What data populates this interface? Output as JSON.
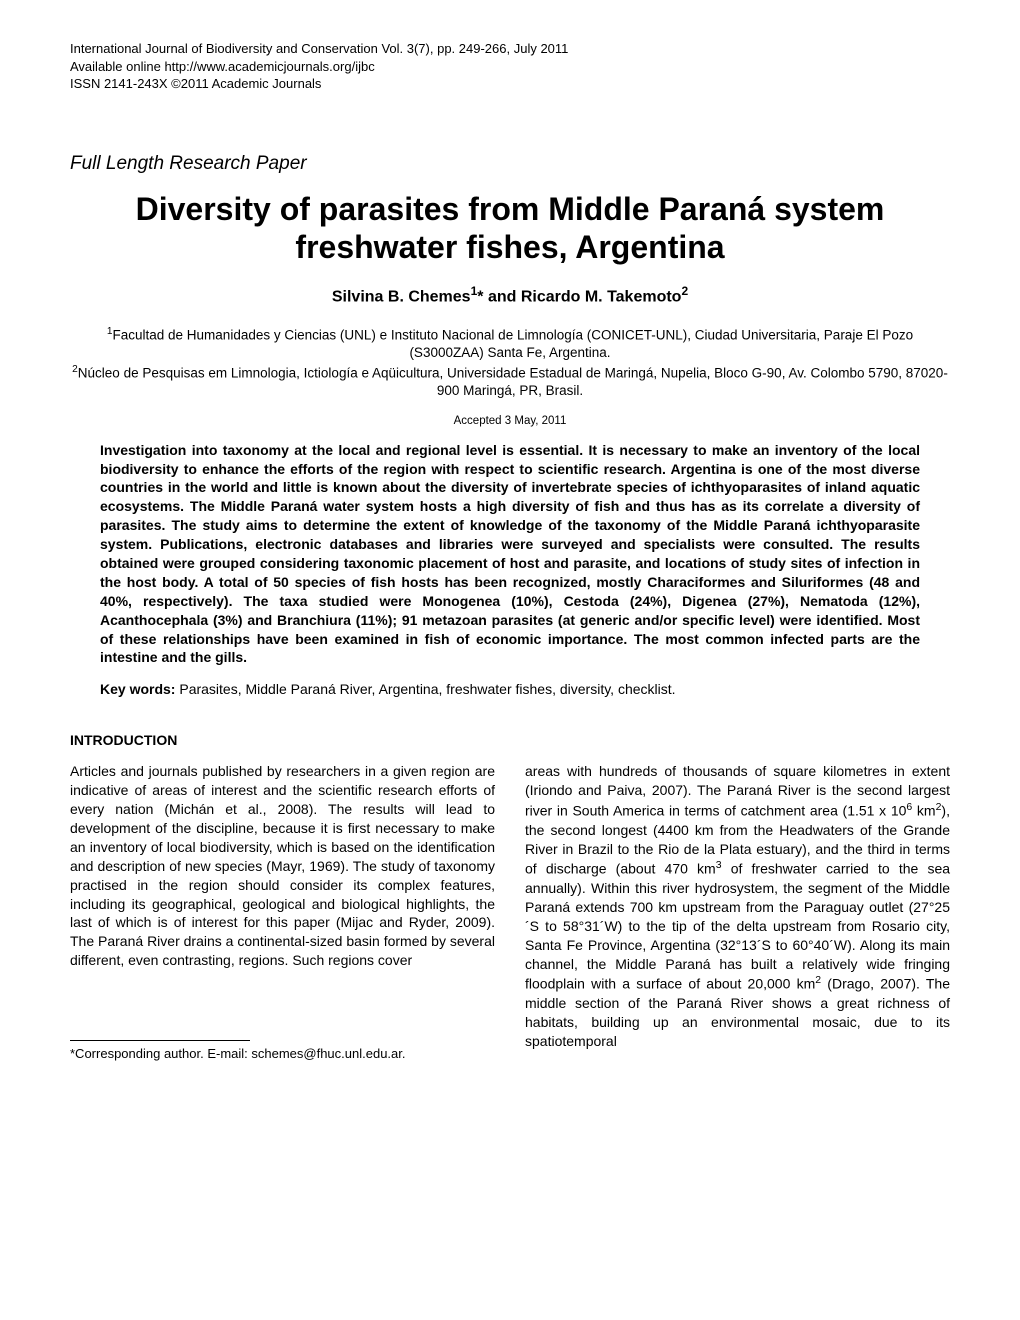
{
  "header": {
    "line1": "International Journal of Biodiversity and Conservation Vol. 3(7), pp. 249-266, July 2011",
    "line2": "Available online http://www.academicjournals.org/ijbc",
    "line3": "ISSN 2141-243X ©2011 Academic Journals"
  },
  "paper_type": "Full Length Research Paper",
  "title": "Diversity of parasites from Middle Paraná system freshwater fishes, Argentina",
  "authors_html": "Silvina B. Chemes<sup>1</sup>* and Ricardo M. Takemoto<sup>2</sup>",
  "affiliations": {
    "a1": "<sup>1</sup>Facultad de Humanidades y Ciencias (UNL) e Instituto Nacional de Limnología (CONICET-UNL), Ciudad Universitaria, Paraje El Pozo (S3000ZAA) Santa Fe, Argentina.",
    "a2": "<sup>2</sup>Núcleo de Pesquisas em Limnologia, Ictiología e Aqüicultura, Universidade Estadual de Maringá, Nupelia, Bloco G-90, Av. Colombo 5790, 87020-900 Maringá, PR, Brasil."
  },
  "accepted": "Accepted 3 May, 2011",
  "abstract": "Investigation into taxonomy at the local and regional level is essential. It is necessary to make an inventory of the local biodiversity to enhance the efforts of the region with respect to scientific research. Argentina is one of the most diverse countries in the world and little is known about the diversity of invertebrate species of ichthyoparasites of inland aquatic ecosystems. The Middle Paraná water system hosts a high diversity of fish and thus has as its correlate a diversity of parasites. The study aims to determine the extent of knowledge of the taxonomy of the Middle Paraná ichthyoparasite system. Publications, electronic databases and libraries were surveyed and specialists were consulted. The results obtained were grouped considering taxonomic placement of host and parasite, and locations of study sites of infection in the host body. A total of 50 species of fish hosts has been recognized, mostly Characiformes and Siluriformes (48 and 40%, respectively). The taxa studied were Monogenea (10%), Cestoda (24%), Digenea (27%), Nematoda (12%), Acanthocephala (3%) and Branchiura (11%); 91 metazoan parasites (at generic and/or specific level) were identified. Most of these relationships have been examined in fish of economic importance. The most common infected parts are the intestine and the gills.",
  "keywords_label": "Key words:",
  "keywords": " Parasites, Middle Paraná River, Argentina, freshwater fishes, diversity, checklist.",
  "section_introduction": "INTRODUCTION",
  "col_left": "Articles and journals published by researchers in a given region are indicative of areas of interest and the scientific research efforts of every nation (Michán et al., 2008). The results will lead to development of the discipline, because it is first necessary to make an inventory of local biodiversity, which is based on the identification and description of new species (Mayr, 1969). The study of taxonomy practised in the region should consider its complex features, including its geographical, geological and biological highlights, the last of which is of interest for this paper (Mijac and Ryder, 2009). The Paraná River drains a continental-sized basin formed by several different, even contrasting, regions.  Such  regions  cover",
  "col_right": "areas with hundreds of thousands of square kilometres in extent (Iriondo and Paiva, 2007). The Paraná River is the second largest river in South America in terms of catchment area (1.51 x 10<sup>6</sup> km<sup>2</sup>), the second longest (4400 km from the Headwaters of the Grande River in Brazil to the Rio de la Plata estuary), and the third in terms of discharge (about 470 km<sup>3</sup> of freshwater carried to the sea annually). Within this river hydrosystem, the segment of the Middle Paraná extends 700 km upstream from the Paraguay outlet (27°25´S to 58°31´W) to the tip of the delta upstream from Rosario city, Santa Fe Province, Argentina (32°13´S to 60°40´W). Along its main channel, the Middle Paraná has built a relatively wide fringing floodplain with a surface of about 20,000 km<sup>2</sup> (Drago, 2007). The middle section of the Paraná River shows a great richness of habitats, building up an environmental mosaic, due to its spatiotemporal",
  "footnote": "*Corresponding author. E-mail: schemes@fhuc.unl.edu.ar."
}
